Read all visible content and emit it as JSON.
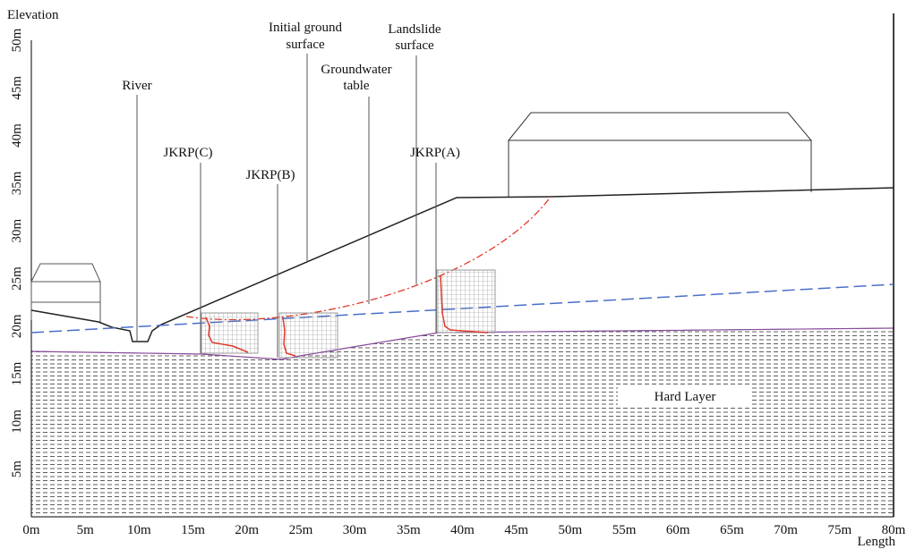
{
  "axes": {
    "y_title": "Elevation",
    "x_title": "Length",
    "x_ticks": [
      "0m",
      "5m",
      "10m",
      "15m",
      "20m",
      "25m",
      "30m",
      "35m",
      "40m",
      "45m",
      "50m",
      "55m",
      "60m",
      "65m",
      "70m",
      "75m",
      "80m"
    ],
    "y_ticks": [
      "5m",
      "10m",
      "15m",
      "20m",
      "25m",
      "30m",
      "35m",
      "40m",
      "45m",
      "50m"
    ]
  },
  "labels": {
    "river": "River",
    "initial_ground_surface": [
      "Initial ground",
      "surface"
    ],
    "landslide_surface": [
      "Landslide",
      "surface"
    ],
    "groundwater_table": [
      "Groundwater",
      "table"
    ],
    "jkrp_c": "JKRP(C)",
    "jkrp_b": "JKRP(B)",
    "jkrp_a": "JKRP(A)",
    "hard_layer": "Hard Layer"
  }
}
